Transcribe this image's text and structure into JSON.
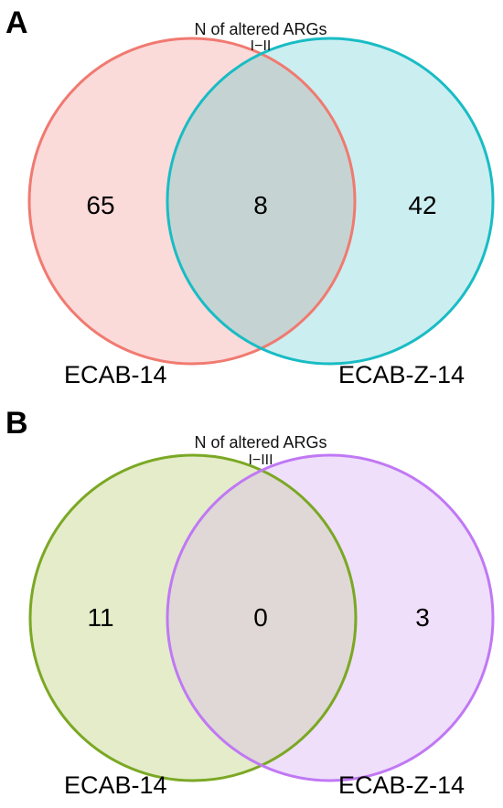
{
  "panels": [
    {
      "letter": "A",
      "title": "N of altered ARGs",
      "subtitle": "I−II",
      "sets": [
        {
          "label": "ECAB-14",
          "only_count": "65",
          "fill": "#fbdada",
          "stroke": "#f07a70"
        },
        {
          "label": "ECAB-Z-14",
          "only_count": "42",
          "fill": "#cbeef1",
          "stroke": "#19bcc4"
        }
      ],
      "overlap_count": "8",
      "overlap_fill": "#c5d4d2"
    },
    {
      "letter": "B",
      "title": "N of altered ARGs",
      "subtitle": "I−III",
      "sets": [
        {
          "label": "ECAB-14",
          "only_count": "11",
          "fill": "#e4ecca",
          "stroke": "#7ba824"
        },
        {
          "label": "ECAB-Z-14",
          "only_count": "3",
          "fill": "#efdffa",
          "stroke": "#c078f4"
        }
      ],
      "overlap_count": "0",
      "overlap_fill": "#dfd8d6"
    }
  ]
}
